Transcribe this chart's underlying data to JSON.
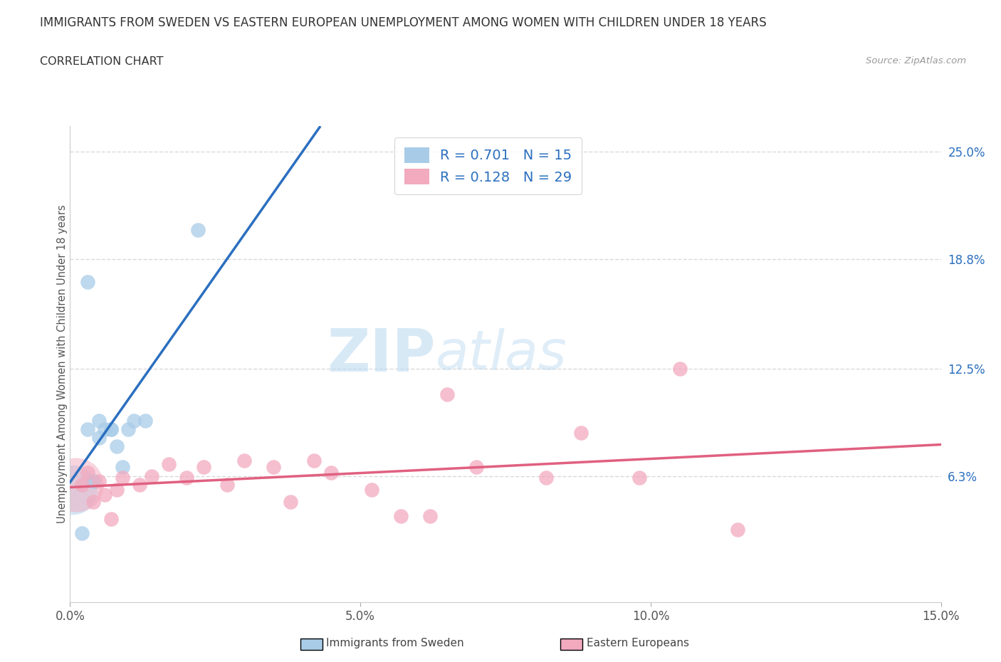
{
  "title": "IMMIGRANTS FROM SWEDEN VS EASTERN EUROPEAN UNEMPLOYMENT AMONG WOMEN WITH CHILDREN UNDER 18 YEARS",
  "subtitle": "CORRELATION CHART",
  "source": "Source: ZipAtlas.com",
  "ylabel": "Unemployment Among Women with Children Under 18 years",
  "xlim": [
    0.0,
    0.15
  ],
  "ylim": [
    -0.01,
    0.265
  ],
  "xticks": [
    0.0,
    0.05,
    0.1,
    0.15
  ],
  "xtick_labels": [
    "0.0%",
    "5.0%",
    "10.0%",
    "15.0%"
  ],
  "ytick_positions": [
    0.063,
    0.125,
    0.188,
    0.25
  ],
  "ytick_labels": [
    "6.3%",
    "12.5%",
    "18.8%",
    "25.0%"
  ],
  "grid_color": "#d0d0d0",
  "background_color": "#ffffff",
  "watermark_zip": "ZIP",
  "watermark_atlas": "atlas",
  "legend_r1": "R = 0.701",
  "legend_n1": "N = 15",
  "legend_r2": "R = 0.128",
  "legend_n2": "N = 29",
  "series1_color": "#A8CCE8",
  "series2_color": "#F2AABF",
  "trend1_color": "#2B6FBF",
  "trend2_color": "#E06080",
  "blue_points_x": [
    0.002,
    0.003,
    0.004,
    0.005,
    0.005,
    0.006,
    0.007,
    0.007,
    0.008,
    0.009,
    0.01,
    0.011,
    0.013,
    0.022,
    0.003
  ],
  "blue_points_y": [
    0.03,
    0.09,
    0.06,
    0.085,
    0.095,
    0.09,
    0.09,
    0.09,
    0.08,
    0.068,
    0.09,
    0.095,
    0.095,
    0.205,
    0.175
  ],
  "pink_points_x": [
    0.002,
    0.003,
    0.004,
    0.005,
    0.006,
    0.007,
    0.008,
    0.009,
    0.012,
    0.014,
    0.017,
    0.02,
    0.023,
    0.027,
    0.03,
    0.035,
    0.038,
    0.042,
    0.045,
    0.052,
    0.057,
    0.062,
    0.065,
    0.07,
    0.082,
    0.088,
    0.098,
    0.105,
    0.115
  ],
  "pink_points_y": [
    0.058,
    0.065,
    0.048,
    0.06,
    0.052,
    0.038,
    0.055,
    0.062,
    0.058,
    0.063,
    0.07,
    0.062,
    0.068,
    0.058,
    0.072,
    0.068,
    0.048,
    0.072,
    0.065,
    0.055,
    0.04,
    0.04,
    0.11,
    0.068,
    0.062,
    0.088,
    0.062,
    0.125,
    0.032
  ],
  "legend_text_color": "#2B6FBF",
  "bottom_legend1": "Immigrants from Sweden",
  "bottom_legend2": "Eastern Europeans"
}
